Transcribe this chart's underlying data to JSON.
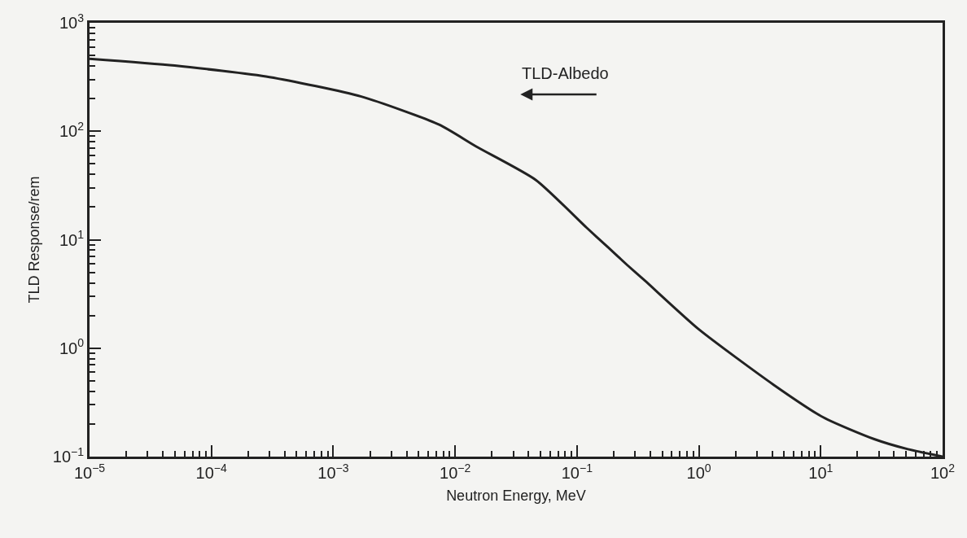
{
  "chart_data": {
    "type": "line",
    "xlabel": "Neutron Energy, MeV",
    "ylabel": "TLD Response/rem",
    "annotations": [
      "TLD-Albedo"
    ],
    "x": [
      1e-05,
      5e-05,
      0.0003,
      0.0017,
      0.0074,
      0.015,
      0.046,
      0.12,
      0.18,
      0.26,
      0.36,
      1,
      4.1,
      10.5,
      27.5,
      52,
      100
    ],
    "series": [
      {
        "color": "#222222",
        "values": [
          466,
          403,
          316,
          209,
          115,
          72,
          35.5,
          12.9,
          8.5,
          5.8,
          4.2,
          1.49,
          0.46,
          0.23,
          0.145,
          0.117,
          0.1
        ]
      }
    ],
    "log": "xy",
    "xlim": [
      1e-05,
      100
    ],
    "ylim": [
      0.1,
      1000
    ],
    "xticks": [
      {
        "value": 1e-05,
        "label": "10$^{−5}$"
      },
      {
        "value": 0.0001,
        "label": "10$^{−4}$"
      },
      {
        "value": 0.001,
        "label": "10$^{−3}$"
      },
      {
        "value": 0.01,
        "label": "10$^{−2}$"
      },
      {
        "value": 0.1,
        "label": "10$^{−1}$"
      },
      {
        "value": 1,
        "label": "10$^{0}$"
      },
      {
        "value": 10,
        "label": "10$^{1}$"
      },
      {
        "value": 100,
        "label": "10$^{2}$"
      }
    ],
    "yticks": [
      {
        "value": 0.1,
        "label": "10$^{−1}$"
      },
      {
        "value": 1,
        "label": "10$^{0}$"
      },
      {
        "value": 10,
        "label": "10$^{1}$"
      },
      {
        "value": 100,
        "label": "10$^{2}$"
      },
      {
        "value": 1000,
        "label": "10$^{3}$"
      }
    ],
    "grid": false,
    "legend": false,
    "marker": "none",
    "line_style": "solid"
  }
}
